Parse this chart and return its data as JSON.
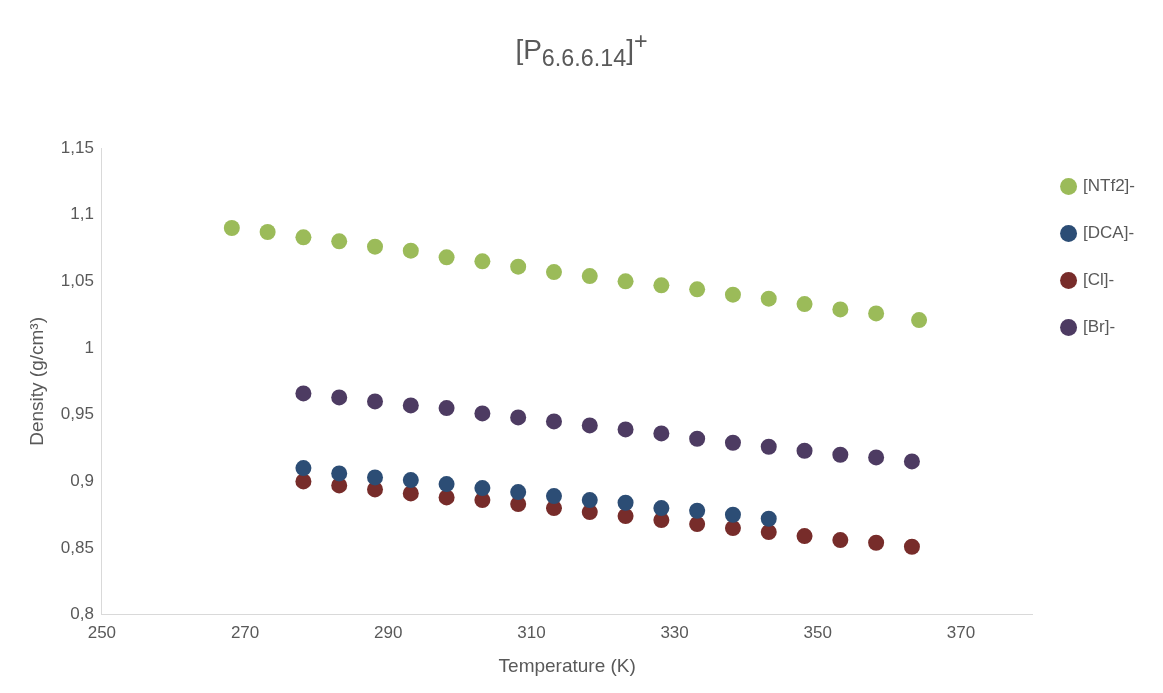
{
  "chart_data": {
    "type": "scatter",
    "title": "[P$_{6.6.6.14}$]$^{+}$",
    "xlabel": "Temperature (K)",
    "ylabel": "Density (g/cm³)",
    "xlim": [
      250,
      380
    ],
    "xticks": [
      250,
      270,
      290,
      310,
      330,
      350,
      370
    ],
    "ylim": [
      0.8,
      1.15
    ],
    "yticks": [
      {
        "value": 0.8,
        "label": "0,8"
      },
      {
        "value": 0.85,
        "label": "0,85"
      },
      {
        "value": 0.9,
        "label": "0,9"
      },
      {
        "value": 0.95,
        "label": "0,95"
      },
      {
        "value": 1,
        "label": "1"
      },
      {
        "value": 1.05,
        "label": "1,05"
      },
      {
        "value": 1.1,
        "label": "1,1"
      },
      {
        "value": 1.15,
        "label": "1,15"
      }
    ],
    "grid": false,
    "legend": "right",
    "marker": "circle",
    "series": [
      {
        "name": "[NTf2]-",
        "color": "#9bbb59",
        "x": [
          268.15,
          273.15,
          278.15,
          283.15,
          288.15,
          293.15,
          298.15,
          303.15,
          308.15,
          313.15,
          318.15,
          323.15,
          328.15,
          333.15,
          338.15,
          343.15,
          348.15,
          353.15,
          358.15,
          364.15
        ],
        "values": [
          1.09,
          1.087,
          1.083,
          1.08,
          1.076,
          1.073,
          1.068,
          1.065,
          1.061,
          1.057,
          1.054,
          1.05,
          1.047,
          1.044,
          1.04,
          1.037,
          1.033,
          1.029,
          1.026,
          1.021
        ]
      },
      {
        "name": "[DCA]-",
        "color": "#2c4d75",
        "x": [
          278.15,
          283.15,
          288.15,
          293.15,
          298.15,
          303.15,
          308.15,
          313.15,
          318.15,
          323.15,
          328.15,
          333.15,
          338.15,
          343.15
        ],
        "values": [
          0.91,
          0.906,
          0.903,
          0.901,
          0.898,
          0.895,
          0.892,
          0.889,
          0.886,
          0.884,
          0.88,
          0.878,
          0.875,
          0.872
        ]
      },
      {
        "name": "[Cl]-",
        "color": "#772c2a",
        "x": [
          278.15,
          283.15,
          288.15,
          293.15,
          298.15,
          303.15,
          308.15,
          313.15,
          318.15,
          323.15,
          328.15,
          333.15,
          338.15,
          343.15,
          348.15,
          353.15,
          358.15,
          363.15
        ],
        "values": [
          0.9,
          0.897,
          0.894,
          0.891,
          0.888,
          0.886,
          0.883,
          0.88,
          0.877,
          0.874,
          0.871,
          0.868,
          0.865,
          0.862,
          0.859,
          0.856,
          0.854,
          0.851
        ]
      },
      {
        "name": "[Br]-",
        "color": "#4d3b62",
        "x": [
          278.15,
          283.15,
          288.15,
          293.15,
          298.15,
          303.15,
          308.15,
          313.15,
          318.15,
          323.15,
          328.15,
          333.15,
          338.15,
          343.15,
          348.15,
          353.15,
          358.15,
          363.15
        ],
        "values": [
          0.966,
          0.963,
          0.96,
          0.957,
          0.955,
          0.951,
          0.948,
          0.945,
          0.942,
          0.939,
          0.936,
          0.932,
          0.929,
          0.926,
          0.923,
          0.92,
          0.918,
          0.915
        ]
      }
    ]
  }
}
